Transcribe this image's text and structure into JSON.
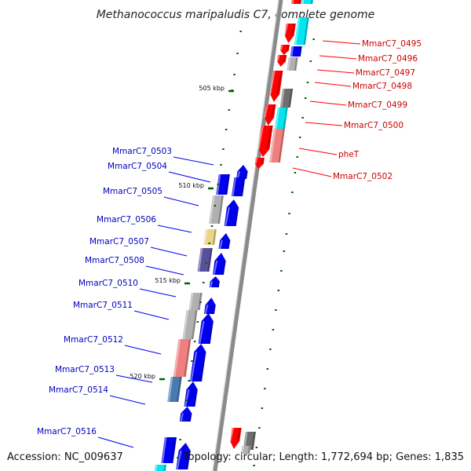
{
  "title": "Methanococcus maripaludis C7, complete genome",
  "footer": {
    "accession": "Accession: NC_009637",
    "summary": "Topology: circular; Length: 1,772,694 bp; Genes: 1,835"
  },
  "colors": {
    "red": "#ff0000",
    "light_red": "#f08080",
    "blue": "#0000ee",
    "cyan": "#00e5ee",
    "gray": "#b0b0b0",
    "dark_gray": "#6e6e6e",
    "khaki": "#e8d58a",
    "slate": "#5a4f9a",
    "steel": "#4a7bb0",
    "backbone": "#8a8a8a",
    "tick": "#006400",
    "label_red": "#cc0000",
    "label_blue": "#0000bb"
  },
  "ticks": [
    {
      "label": "505 kbp"
    },
    {
      "label": "510 kbp"
    },
    {
      "label": "515 kbp"
    },
    {
      "label": "520 kbp"
    }
  ],
  "genes_right": [
    {
      "label": "MmarC7_0495"
    },
    {
      "label": "MmarC7_0496"
    },
    {
      "label": "MmarC7_0497"
    },
    {
      "label": "MmarC7_0498"
    },
    {
      "label": "MmarC7_0499"
    },
    {
      "label": "MmarC7_0500"
    },
    {
      "label": "pheT"
    },
    {
      "label": "MmarC7_0502"
    }
  ],
  "genes_left": [
    {
      "label": "MmarC7_0503"
    },
    {
      "label": "MmarC7_0504"
    },
    {
      "label": "MmarC7_0505"
    },
    {
      "label": "MmarC7_0506"
    },
    {
      "label": "MmarC7_0507"
    },
    {
      "label": "MmarC7_0508"
    },
    {
      "label": "MmarC7_0510"
    },
    {
      "label": "MmarC7_0511"
    },
    {
      "label": "MmarC7_0512"
    },
    {
      "label": "MmarC7_0513"
    },
    {
      "label": "MmarC7_0514"
    },
    {
      "label": "MmarC7_0516"
    }
  ]
}
